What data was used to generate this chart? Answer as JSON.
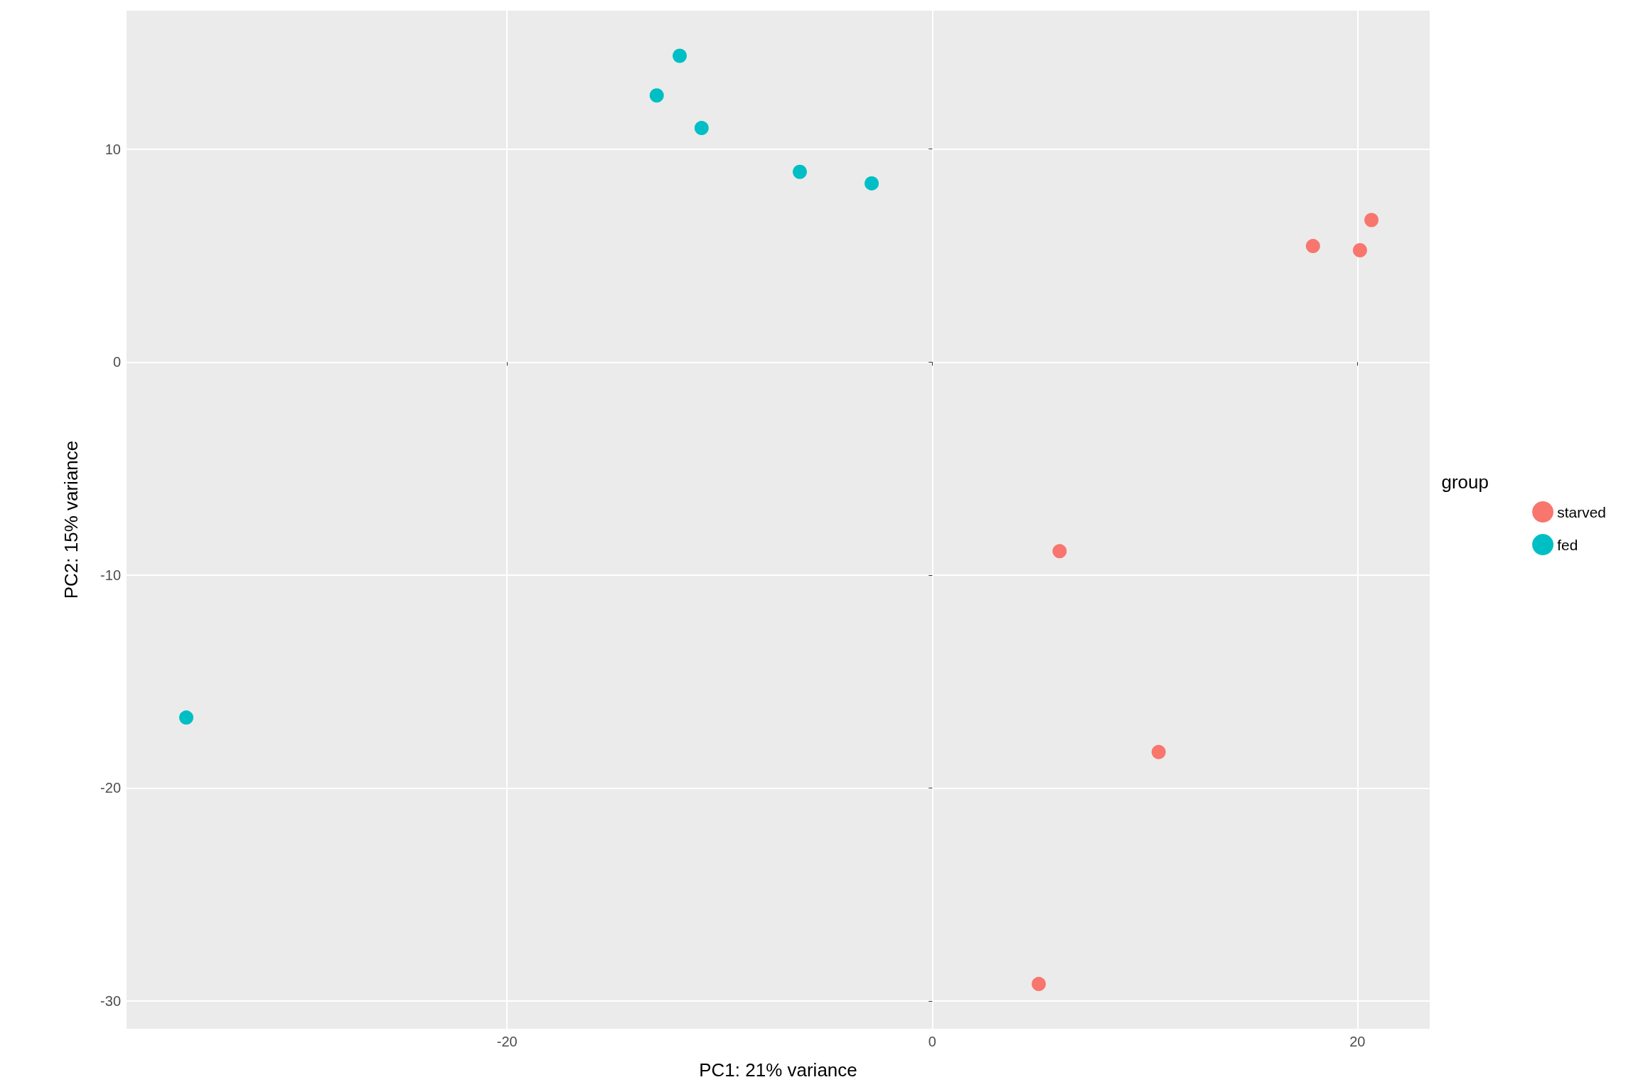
{
  "chart_data": {
    "type": "scatter",
    "xlabel": "PC1: 21% variance",
    "ylabel": "PC2: 15% variance",
    "legend_title": "group",
    "series": [
      {
        "name": "starved",
        "color": "#f8766d",
        "x": [
          20.66,
          17.91,
          20.12,
          5.99,
          10.65,
          5.01
        ],
        "values": [
          6.67,
          5.45,
          5.25,
          -8.88,
          -18.31,
          -29.2
        ]
      },
      {
        "name": "fed",
        "color": "#00bfc4",
        "x": [
          -11.88,
          -12.96,
          -10.85,
          -6.23,
          -2.85,
          -35.09
        ],
        "values": [
          14.38,
          12.52,
          10.99,
          8.93,
          8.39,
          -16.69
        ]
      }
    ],
    "xlim": [
      -37.9,
      23.4
    ],
    "ylim": [
      -31.3,
      16.5
    ],
    "xticks": [
      -20,
      0,
      20
    ],
    "yticks": [
      -30,
      -20,
      -10,
      0,
      10
    ],
    "grid": true,
    "legend": "right",
    "marker": "circle"
  }
}
